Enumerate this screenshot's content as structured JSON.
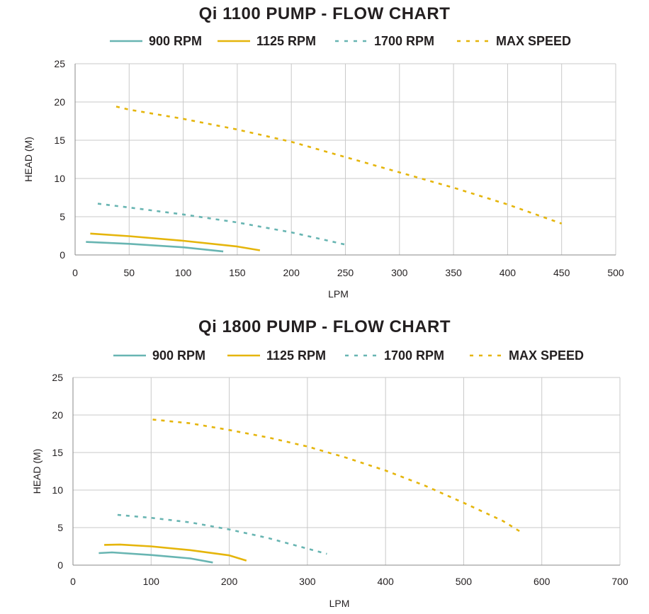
{
  "colors": {
    "teal": "#68b5b2",
    "gold": "#e5b50b",
    "grid": "#c9c9c9",
    "text": "#231f20"
  },
  "chart_data": [
    {
      "type": "line",
      "title": "Qi 1100 PUMP - FLOW CHART",
      "xlabel": "LPM",
      "ylabel": "HEAD (M)",
      "xlim": [
        0,
        500
      ],
      "ylim": [
        0,
        25
      ],
      "x_ticks": [
        0,
        50,
        100,
        150,
        200,
        250,
        300,
        350,
        400,
        450,
        500
      ],
      "y_ticks": [
        0,
        5,
        10,
        15,
        20,
        25
      ],
      "grid": true,
      "legend_position": "top",
      "series": [
        {
          "name": "900 RPM",
          "color": "teal",
          "style": "solid",
          "points": [
            [
              10,
              1.7
            ],
            [
              50,
              1.45
            ],
            [
              100,
              1.0
            ],
            [
              137,
              0.45
            ]
          ]
        },
        {
          "name": "1125 RPM",
          "color": "gold",
          "style": "solid",
          "points": [
            [
              14,
              2.8
            ],
            [
              50,
              2.45
            ],
            [
              100,
              1.85
            ],
            [
              150,
              1.1
            ],
            [
              171,
              0.6
            ]
          ]
        },
        {
          "name": "1700 RPM",
          "color": "teal",
          "style": "dashed",
          "points": [
            [
              21,
              6.7
            ],
            [
              50,
              6.2
            ],
            [
              100,
              5.3
            ],
            [
              150,
              4.25
            ],
            [
              200,
              2.95
            ],
            [
              250,
              1.35
            ]
          ]
        },
        {
          "name": "MAX SPEED",
          "color": "gold",
          "style": "dashed",
          "points": [
            [
              38,
              19.4
            ],
            [
              50,
              19.0
            ],
            [
              100,
              17.8
            ],
            [
              150,
              16.4
            ],
            [
              200,
              14.8
            ],
            [
              250,
              12.8
            ],
            [
              300,
              10.8
            ],
            [
              350,
              8.8
            ],
            [
              400,
              6.6
            ],
            [
              450,
              4.1
            ]
          ]
        }
      ]
    },
    {
      "type": "line",
      "title": "Qi 1800 PUMP - FLOW CHART",
      "xlabel": "LPM",
      "ylabel": "HEAD (M)",
      "xlim": [
        0,
        700
      ],
      "ylim": [
        0,
        25
      ],
      "x_ticks": [
        0,
        100,
        200,
        300,
        400,
        500,
        600,
        700
      ],
      "y_ticks": [
        0,
        5,
        10,
        15,
        20,
        25
      ],
      "grid": true,
      "legend_position": "top",
      "series": [
        {
          "name": "900 RPM",
          "color": "teal",
          "style": "solid",
          "points": [
            [
              33,
              1.6
            ],
            [
              50,
              1.7
            ],
            [
              100,
              1.35
            ],
            [
              150,
              0.9
            ],
            [
              179,
              0.35
            ]
          ]
        },
        {
          "name": "1125 RPM",
          "color": "gold",
          "style": "solid",
          "points": [
            [
              40,
              2.7
            ],
            [
              60,
              2.75
            ],
            [
              100,
              2.5
            ],
            [
              150,
              2.0
            ],
            [
              200,
              1.3
            ],
            [
              222,
              0.6
            ]
          ]
        },
        {
          "name": "1700 RPM",
          "color": "teal",
          "style": "dashed",
          "points": [
            [
              57,
              6.7
            ],
            [
              100,
              6.3
            ],
            [
              150,
              5.7
            ],
            [
              200,
              4.75
            ],
            [
              250,
              3.6
            ],
            [
              300,
              2.2
            ],
            [
              325,
              1.5
            ]
          ]
        },
        {
          "name": "MAX SPEED",
          "color": "gold",
          "style": "dashed",
          "points": [
            [
              102,
              19.4
            ],
            [
              150,
              18.9
            ],
            [
              200,
              18.0
            ],
            [
              250,
              17.0
            ],
            [
              300,
              15.8
            ],
            [
              350,
              14.3
            ],
            [
              400,
              12.6
            ],
            [
              450,
              10.6
            ],
            [
              500,
              8.3
            ],
            [
              550,
              5.9
            ],
            [
              575,
              4.3
            ]
          ]
        }
      ]
    }
  ]
}
